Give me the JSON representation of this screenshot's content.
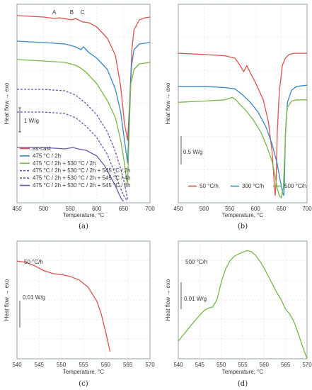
{
  "chart_data": [
    {
      "type": "line",
      "panel_label": "(a)",
      "xlabel": "Temperature, °C",
      "ylabel": "Heat flow → exo",
      "xlim": [
        450,
        700
      ],
      "xticks": [
        450,
        500,
        550,
        600,
        650,
        700
      ],
      "scale_bar": "1 W/g",
      "peak_labels": [
        {
          "text": "A",
          "x": 520
        },
        {
          "text": "B",
          "x": 553
        },
        {
          "text": "C",
          "x": 573
        }
      ],
      "legend_placement": "bottom-left",
      "series": [
        {
          "name": "as-cast",
          "color": "#d9534f",
          "dash": false,
          "x": [
            450,
            500,
            520,
            530,
            553,
            560,
            573,
            585,
            600,
            620,
            635,
            645,
            652,
            658,
            662,
            666,
            670,
            680,
            690,
            700
          ],
          "y": [
            6.0,
            5.95,
            5.9,
            5.92,
            5.85,
            5.9,
            5.78,
            5.75,
            5.6,
            5.2,
            4.6,
            3.5,
            2.2,
            1.6,
            3.0,
            4.8,
            5.5,
            5.85,
            5.92,
            5.95
          ]
        },
        {
          "name": "475 °C / 2h",
          "color": "#3a87c0",
          "dash": false,
          "x": [
            450,
            500,
            540,
            560,
            570,
            575,
            585,
            600,
            620,
            635,
            645,
            652,
            658,
            661,
            665,
            670,
            680,
            700
          ],
          "y": [
            5.1,
            5.05,
            5.0,
            4.9,
            4.8,
            4.9,
            4.7,
            4.5,
            4.1,
            3.4,
            2.6,
            1.6,
            0.8,
            2.5,
            4.2,
            4.8,
            5.0,
            5.05
          ]
        },
        {
          "name": "475 °C / 2h + 530 °C / 2h",
          "color": "#7ab648",
          "dash": false,
          "x": [
            450,
            500,
            540,
            560,
            570,
            580,
            600,
            620,
            635,
            645,
            652,
            656,
            658,
            661,
            664,
            670,
            680,
            700
          ],
          "y": [
            4.45,
            4.4,
            4.35,
            4.25,
            4.15,
            4.0,
            3.6,
            3.0,
            2.4,
            1.6,
            0.8,
            0.2,
            0.1,
            2.0,
            3.6,
            4.1,
            4.3,
            4.35
          ]
        },
        {
          "name": "475 °C / 2h + 530 °C / 2h + 545 °C / 2h",
          "color": "#6a55a8",
          "dash": true,
          "x": [
            450,
            500,
            540,
            560,
            580,
            600,
            620,
            635,
            645,
            652,
            656,
            658
          ],
          "y": [
            3.4,
            3.4,
            3.35,
            3.2,
            2.9,
            2.5,
            1.9,
            1.2,
            0.6,
            0.1,
            -0.3,
            -0.5
          ]
        },
        {
          "name": "475 °C / 2h + 530 °C / 2h + 545 °C / 4h",
          "color": "#6a55a8",
          "dash": true,
          "x": [
            450,
            500,
            540,
            560,
            580,
            600,
            620,
            635,
            645,
            652,
            656
          ],
          "y": [
            2.6,
            2.6,
            2.55,
            2.4,
            2.1,
            1.7,
            1.1,
            0.4,
            -0.1,
            -0.4,
            -0.5
          ]
        },
        {
          "name": "475 °C / 2h + 530 °C / 2h + 545 °C / 8h",
          "color": "#6a55a8",
          "dash": false,
          "x": [
            450,
            500,
            540,
            555,
            565,
            580,
            600,
            615,
            625,
            635,
            642,
            646,
            650
          ],
          "y": [
            1.35,
            1.35,
            1.3,
            1.35,
            1.3,
            1.25,
            1.05,
            0.7,
            0.35,
            0.0,
            -0.3,
            -0.45,
            -0.55
          ]
        }
      ]
    },
    {
      "type": "line",
      "panel_label": "(b)",
      "xlabel": "Temperature, °C",
      "ylabel": "Heat flow → exo",
      "xlim": [
        450,
        700
      ],
      "xticks": [
        450,
        500,
        550,
        600,
        650,
        700
      ],
      "scale_bar": "0.5 W/g",
      "legend_placement": "bottom",
      "series": [
        {
          "name": "50 °C/h",
          "color": "#d9534f",
          "dash": false,
          "x": [
            450,
            500,
            540,
            560,
            570,
            577,
            583,
            590,
            600,
            615,
            625,
            632,
            636,
            638,
            640,
            642,
            646,
            652,
            658,
            665,
            675,
            700
          ],
          "y": [
            5.8,
            5.75,
            5.7,
            5.6,
            5.3,
            5.05,
            5.3,
            5.0,
            4.6,
            3.9,
            3.0,
            1.8,
            0.6,
            0.0,
            0.5,
            2.5,
            4.2,
            5.3,
            5.6,
            5.75,
            5.8,
            5.8
          ]
        },
        {
          "name": "300 °C/h",
          "color": "#3a87c0",
          "dash": false,
          "x": [
            450,
            500,
            540,
            560,
            575,
            590,
            605,
            620,
            632,
            642,
            648,
            653,
            655,
            656,
            658,
            662,
            670,
            680,
            700
          ],
          "y": [
            4.45,
            4.45,
            4.4,
            4.35,
            4.1,
            3.8,
            3.4,
            2.8,
            2.1,
            1.3,
            0.6,
            0.1,
            0.0,
            0.5,
            2.5,
            3.8,
            4.3,
            4.45,
            4.5
          ]
        },
        {
          "name": "500 °C/h",
          "color": "#7ab648",
          "dash": false,
          "x": [
            450,
            500,
            540,
            555,
            562,
            570,
            580,
            595,
            610,
            622,
            632,
            638,
            642,
            646,
            650,
            654,
            657,
            659,
            662,
            670,
            680,
            700
          ],
          "y": [
            3.8,
            3.85,
            3.9,
            4.0,
            3.9,
            3.7,
            3.5,
            3.1,
            2.6,
            2.0,
            1.4,
            0.8,
            0.3,
            0.0,
            -0.1,
            0.3,
            1.8,
            3.0,
            3.6,
            3.85,
            3.9,
            3.9
          ]
        }
      ]
    },
    {
      "type": "line",
      "panel_label": "(c)",
      "xlabel": "Temperature, °C",
      "ylabel": "Heat flow → exo",
      "xlim": [
        540,
        570
      ],
      "xticks": [
        540,
        545,
        550,
        555,
        560,
        565,
        570
      ],
      "title_note": "50 °C/h",
      "scale_bar": "0.01 W/g",
      "series": [
        {
          "name": "50 °C/h",
          "color": "#d9534f",
          "dash": false,
          "x": [
            540,
            542,
            544,
            546,
            548,
            550,
            552,
            554,
            556,
            558,
            559,
            560,
            561
          ],
          "y": [
            8.3,
            8.2,
            7.9,
            7.5,
            7.25,
            7.15,
            7.0,
            6.7,
            6.1,
            4.9,
            3.8,
            2.3,
            0.6
          ]
        }
      ]
    },
    {
      "type": "line",
      "panel_label": "(d)",
      "xlabel": "Temperature, °C",
      "ylabel": "Heat flow → exo",
      "xlim": [
        540,
        570
      ],
      "xticks": [
        540,
        545,
        550,
        555,
        560,
        565,
        570
      ],
      "title_note": "500 °C/h",
      "scale_bar": "0.01 W/g",
      "series": [
        {
          "name": "500 °C/h",
          "color": "#7ab648",
          "dash": false,
          "x": [
            540,
            542,
            544,
            546,
            547,
            548,
            549,
            550,
            551,
            552,
            553,
            554,
            556,
            557,
            558,
            559,
            560,
            561,
            562,
            563,
            564,
            565,
            566,
            567,
            568,
            569,
            570
          ],
          "y": [
            1.5,
            2.4,
            3.3,
            4.1,
            4.3,
            4.4,
            5.0,
            6.5,
            7.6,
            8.3,
            8.7,
            8.9,
            9.2,
            9.1,
            8.8,
            8.3,
            7.7,
            7.0,
            6.3,
            5.6,
            5.0,
            4.2,
            3.8,
            3.1,
            2.1,
            1.0,
            0.0
          ]
        }
      ]
    }
  ]
}
